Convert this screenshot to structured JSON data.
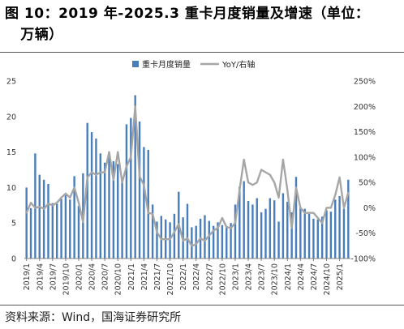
{
  "figure": {
    "title": "图 10：2019 年-2025.3 重卡月度销量及增速（单位：\n   万辆）",
    "source": "资料来源：Wind，国海证券研究所"
  },
  "colors": {
    "bar": "#4a7ebb",
    "line": "#a6a6a6"
  },
  "chart_data": {
    "type": "bar+line",
    "title": "",
    "legend": {
      "position": "top-center",
      "entries": [
        "重卡月度销量",
        "YoY/右轴"
      ]
    },
    "categories": [
      "2019/1",
      "2019/2",
      "2019/3",
      "2019/4",
      "2019/5",
      "2019/6",
      "2019/7",
      "2019/8",
      "2019/9",
      "2019/10",
      "2019/11",
      "2019/12",
      "2020/1",
      "2020/2",
      "2020/3",
      "2020/4",
      "2020/5",
      "2020/6",
      "2020/7",
      "2020/8",
      "2020/9",
      "2020/10",
      "2020/11",
      "2020/12",
      "2021/1",
      "2021/2",
      "2021/3",
      "2021/4",
      "2021/5",
      "2021/6",
      "2021/7",
      "2021/8",
      "2021/9",
      "2021/10",
      "2021/11",
      "2021/12",
      "2022/1",
      "2022/2",
      "2022/3",
      "2022/4",
      "2022/5",
      "2022/6",
      "2022/7",
      "2022/8",
      "2022/9",
      "2022/10",
      "2022/11",
      "2022/12",
      "2023/1",
      "2023/2",
      "2023/3",
      "2023/4",
      "2023/5",
      "2023/6",
      "2023/7",
      "2023/8",
      "2023/9",
      "2023/10",
      "2023/11",
      "2023/12",
      "2024/1",
      "2024/2",
      "2024/3",
      "2024/4",
      "2024/5",
      "2024/6",
      "2024/7",
      "2024/8",
      "2024/9",
      "2024/10",
      "2024/11",
      "2024/12",
      "2025/1",
      "2025/2",
      "2025/3"
    ],
    "x_tick_labels": [
      "2019/1",
      "2019/4",
      "2019/7",
      "2019/10",
      "2020/1",
      "2020/4",
      "2020/7",
      "2020/10",
      "2021/1",
      "2021/4",
      "2021/7",
      "2021/10",
      "2022/1",
      "2022/4",
      "2022/7",
      "2022/10",
      "2023/1",
      "2023/4",
      "2023/7",
      "2023/10",
      "2024/1",
      "2024/4",
      "2024/7",
      "2024/10",
      "2025/1"
    ],
    "series": [
      {
        "name": "重卡月度销量",
        "type": "bar",
        "axis": "left",
        "values": [
          10.0,
          7.1,
          14.8,
          11.8,
          11.1,
          10.5,
          7.8,
          7.7,
          8.4,
          8.9,
          8.3,
          11.6,
          7.4,
          12.0,
          19.1,
          17.8,
          16.9,
          14.8,
          13.5,
          15.0,
          13.7,
          13.3,
          11.0,
          18.9,
          19.8,
          23.0,
          19.3,
          15.7,
          15.3,
          7.6,
          5.2,
          6.0,
          5.5,
          5.1,
          6.3,
          9.4,
          5.8,
          7.7,
          4.4,
          4.6,
          5.6,
          6.1,
          5.3,
          4.6,
          5.1,
          4.7,
          4.6,
          5.0,
          7.6,
          10.1,
          10.9,
          8.1,
          7.6,
          8.5,
          6.5,
          7.0,
          8.5,
          8.2,
          5.2,
          9.2,
          8.0,
          6.5,
          11.5,
          7.2,
          7.0,
          6.3,
          5.6,
          5.5,
          5.9,
          6.8,
          6.6,
          8.3,
          8.8,
          7.0,
          11.1
        ]
      },
      {
        "name": "YoY/右轴",
        "type": "line",
        "axis": "right",
        "values": [
          -10,
          10,
          0,
          2,
          -2,
          8,
          5,
          10,
          20,
          28,
          20,
          40,
          10,
          -28,
          60,
          70,
          65,
          70,
          70,
          110,
          55,
          110,
          50,
          82,
          100,
          200,
          62,
          45,
          -10,
          -12,
          -48,
          -62,
          -62,
          -62,
          -48,
          -32,
          -65,
          -60,
          -75,
          -72,
          -60,
          -65,
          -55,
          -45,
          -40,
          -20,
          -38,
          -40,
          -30,
          35,
          95,
          50,
          45,
          50,
          75,
          70,
          65,
          50,
          20,
          95,
          35,
          -40,
          40,
          0,
          -10,
          -10,
          -10,
          -20,
          -30,
          0,
          0,
          25,
          60,
          0,
          30
        ]
      }
    ],
    "y_left": {
      "min": 0,
      "max": 25,
      "ticks": [
        "0",
        "5",
        "10",
        "15",
        "20",
        "25"
      ]
    },
    "y_right": {
      "min": -100,
      "max": 250,
      "ticks": [
        "-100%",
        "-50%",
        "0%",
        "50%",
        "100%",
        "150%",
        "200%",
        "250%"
      ]
    },
    "grid": false
  }
}
